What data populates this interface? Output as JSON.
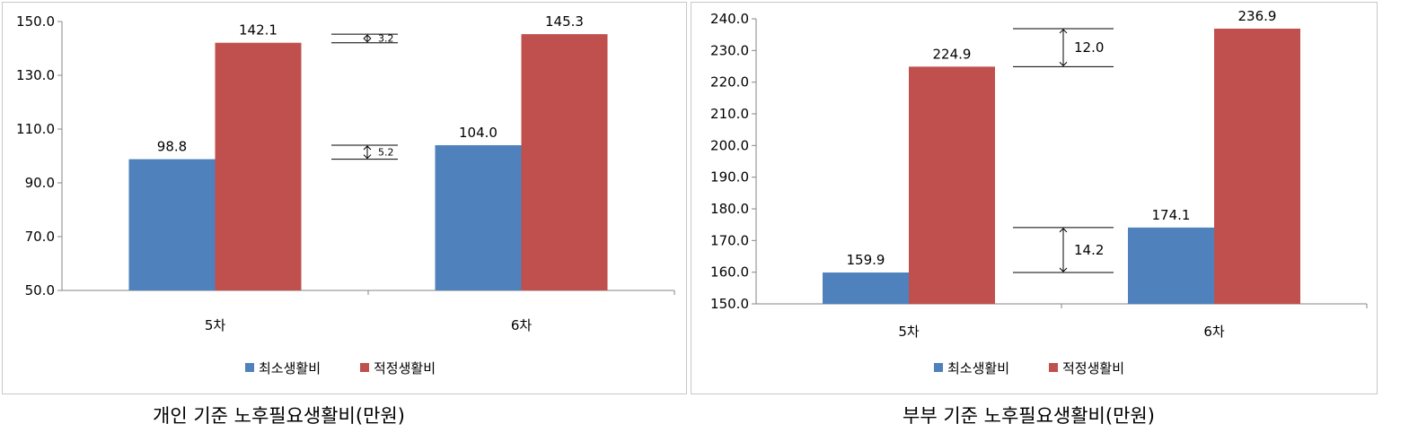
{
  "chart_data": [
    {
      "type": "bar",
      "categories": [
        "5차",
        "6차"
      ],
      "series": [
        {
          "name": "최소생활비",
          "values": [
            98.8,
            104.0
          ],
          "color": "#4f81bd"
        },
        {
          "name": "적정생활비",
          "values": [
            142.1,
            145.3
          ],
          "color": "#c0504d"
        }
      ],
      "yticks": [
        "50.0",
        "70.0",
        "90.0",
        "110.0",
        "130.0",
        "150.0"
      ],
      "ylim": [
        50,
        150
      ],
      "data_labels": [
        [
          "98.8",
          "104.0"
        ],
        [
          "142.1",
          "145.3"
        ]
      ],
      "annotations": [
        {
          "label": "3.2",
          "from": 142.1,
          "to": 145.3
        },
        {
          "label": "5.2",
          "from": 98.8,
          "to": 104.0
        }
      ],
      "legend": "bottom",
      "grid": false,
      "caption": "개인 기준 노후필요생활비(만원)"
    },
    {
      "type": "bar",
      "categories": [
        "5차",
        "6차"
      ],
      "series": [
        {
          "name": "최소생활비",
          "values": [
            159.9,
            174.1
          ],
          "color": "#4f81bd"
        },
        {
          "name": "적정생활비",
          "values": [
            224.9,
            236.9
          ],
          "color": "#c0504d"
        }
      ],
      "yticks": [
        "150.0",
        "160.0",
        "170.0",
        "180.0",
        "190.0",
        "200.0",
        "210.0",
        "220.0",
        "230.0",
        "240.0"
      ],
      "ylim": [
        150,
        240
      ],
      "data_labels": [
        [
          "159.9",
          "174.1"
        ],
        [
          "224.9",
          "236.9"
        ]
      ],
      "annotations": [
        {
          "label": "12.0",
          "from": 224.9,
          "to": 236.9
        },
        {
          "label": "14.2",
          "from": 159.9,
          "to": 174.1
        }
      ],
      "legend": "bottom",
      "grid": false,
      "caption": "부부 기준 노후필요생활비(만원)"
    }
  ]
}
